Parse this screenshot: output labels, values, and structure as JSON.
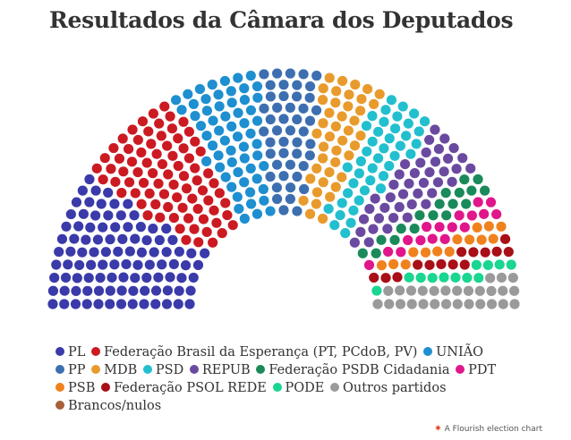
{
  "title": "Resultados da Câmara dos Deputados",
  "credit": "A Flourish election chart",
  "credit_icon": "flourish-logo-icon",
  "chart_data": {
    "type": "parliament",
    "title": "Resultados da Câmara dos Deputados",
    "total_seats": 513,
    "parties": [
      {
        "name": "PL",
        "seats": 99,
        "color": "#3a3aaa"
      },
      {
        "name": "Federação Brasil da Esperança (PT, PCdoB, PV)",
        "seats": 80,
        "color": "#cc1a22"
      },
      {
        "name": "UNIÃO",
        "seats": 59,
        "color": "#1e8fd0"
      },
      {
        "name": "PP",
        "seats": 47,
        "color": "#3d6fb0"
      },
      {
        "name": "MDB",
        "seats": 42,
        "color": "#e89b2c"
      },
      {
        "name": "PSD",
        "seats": 42,
        "color": "#22bfcf"
      },
      {
        "name": "REPUB",
        "seats": 41,
        "color": "#6a4aa0"
      },
      {
        "name": "Federação PSDB Cidadania",
        "seats": 18,
        "color": "#1a8a5a"
      },
      {
        "name": "PDT",
        "seats": 17,
        "color": "#e0168a"
      },
      {
        "name": "PSB",
        "seats": 14,
        "color": "#f0821e"
      },
      {
        "name": "Federação PSOL REDE",
        "seats": 14,
        "color": "#a80f16"
      },
      {
        "name": "PODE",
        "seats": 12,
        "color": "#19d690"
      },
      {
        "name": "Outros partidos",
        "seats": 28,
        "color": "#9a9a9a"
      },
      {
        "name": "Brancos/nulos",
        "seats": 0,
        "color": "#a8613a"
      }
    ]
  }
}
